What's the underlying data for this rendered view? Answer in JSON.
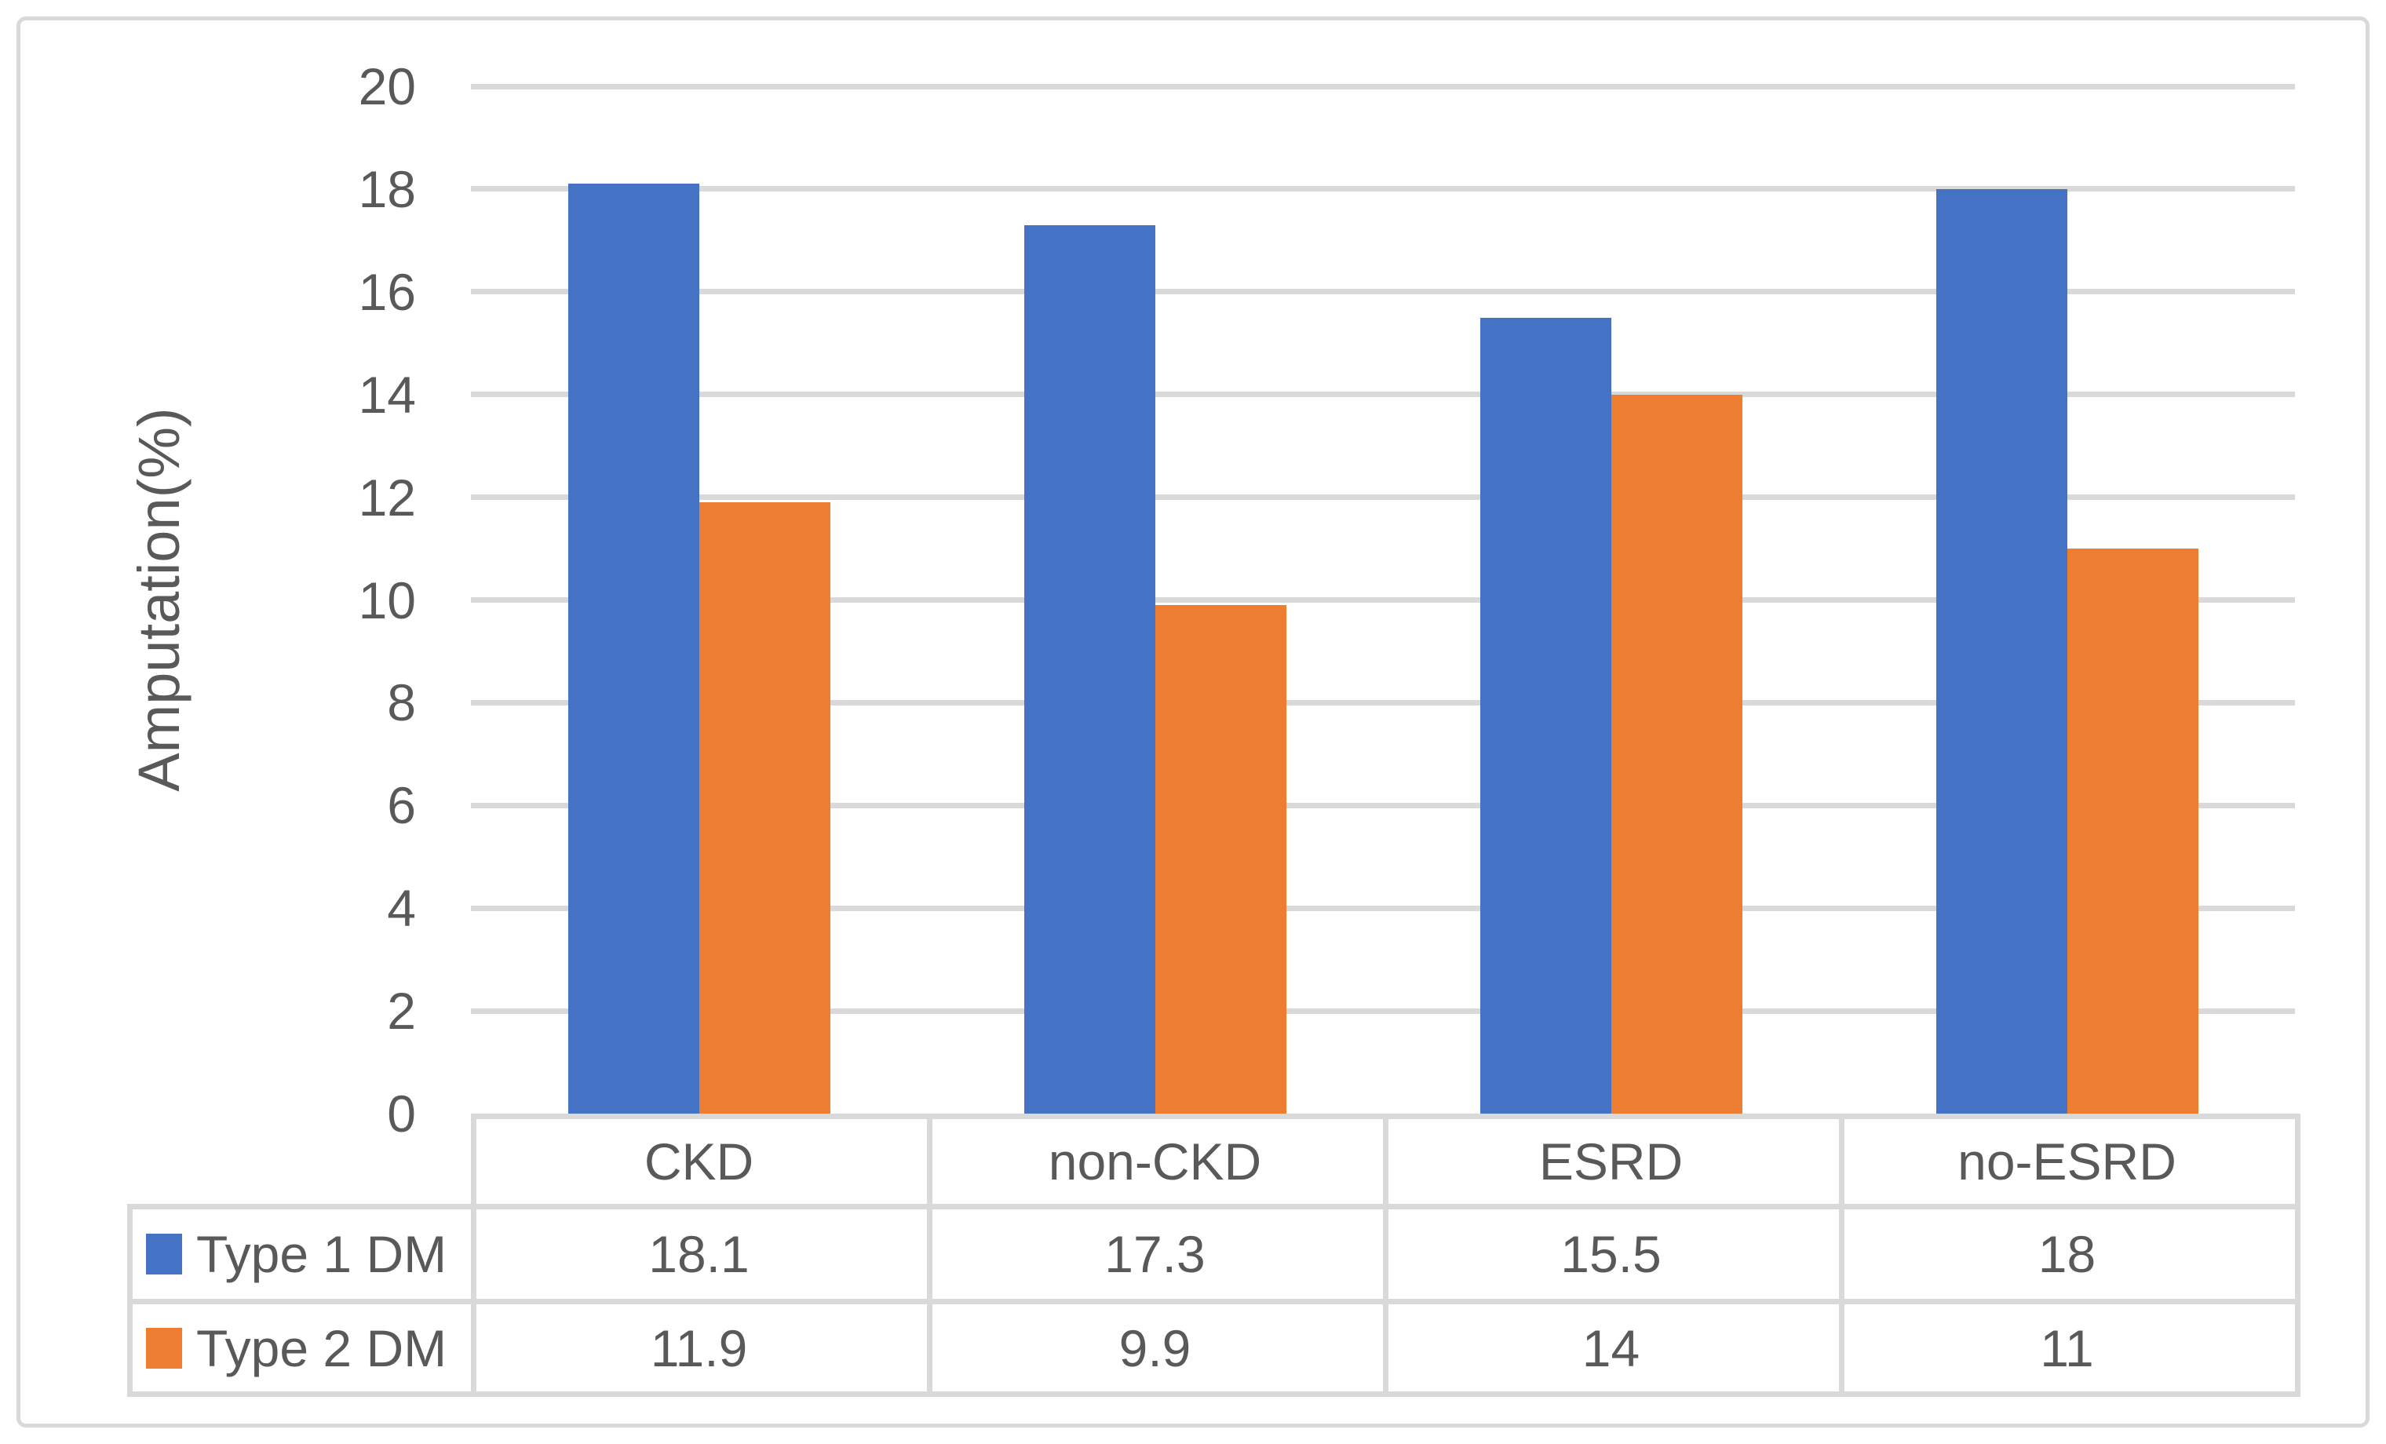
{
  "chart_data": {
    "type": "bar",
    "title": "",
    "ylabel": "Amputation(%)",
    "xlabel": "",
    "categories": [
      "CKD",
      "non-CKD",
      "ESRD",
      "no-ESRD"
    ],
    "series": [
      {
        "name": "Type 1 DM",
        "color": "#4472C4",
        "values": [
          18.1,
          17.3,
          15.5,
          18
        ]
      },
      {
        "name": "Type 2 DM",
        "color": "#ED7D31",
        "values": [
          11.9,
          9.9,
          14,
          11
        ]
      }
    ],
    "ylim": [
      0,
      20
    ],
    "yticks": [
      0,
      2,
      4,
      6,
      8,
      10,
      12,
      14,
      16,
      18,
      20
    ],
    "grid": true,
    "gap_width_percent": 150,
    "legend_position": "data-table-left",
    "colors": {
      "grid": "#D9D9D9",
      "axis_text": "#595959",
      "table_border": "#D9D9D9",
      "chart_border": "#D9D9D9",
      "background": "#FFFFFF"
    }
  }
}
